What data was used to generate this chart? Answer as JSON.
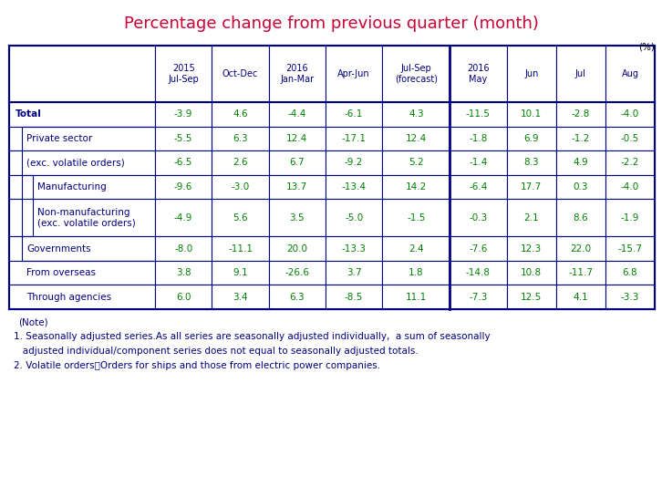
{
  "title": "Percentage change from previous quarter (month)",
  "title_color": "#CC0033",
  "unit_label": "(%)",
  "header_texts": [
    "2015\nJul-Sep",
    "Oct-Dec",
    "2016\nJan-Mar",
    "Apr-Jun",
    "Jul-Sep\n(forecast)",
    "2016\nMay",
    "Jun",
    "Jul",
    "Aug"
  ],
  "row_labels": [
    "Total",
    "Private sector",
    "(exc. volatile orders)",
    "Manufacturing",
    "Non-manufacturing\n(exc. volatile orders)",
    "Governments",
    "From overseas",
    "Through agencies"
  ],
  "row_indent": [
    0,
    1,
    1,
    2,
    2,
    1,
    1,
    1
  ],
  "row_label_bold": [
    true,
    false,
    false,
    false,
    false,
    false,
    false,
    false
  ],
  "data": [
    [
      "-3.9",
      "4.6",
      "-4.4",
      "-6.1",
      "4.3",
      "-11.5",
      "10.1",
      "-2.8",
      "-4.0"
    ],
    [
      "-5.5",
      "6.3",
      "12.4",
      "-17.1",
      "12.4",
      "-1.8",
      "6.9",
      "-1.2",
      "-0.5"
    ],
    [
      "-6.5",
      "2.6",
      "6.7",
      "-9.2",
      "5.2",
      "-1.4",
      "8.3",
      "4.9",
      "-2.2"
    ],
    [
      "-9.6",
      "-3.0",
      "13.7",
      "-13.4",
      "14.2",
      "-6.4",
      "17.7",
      "0.3",
      "-4.0"
    ],
    [
      "-4.9",
      "5.6",
      "3.5",
      "-5.0",
      "-1.5",
      "-0.3",
      "2.1",
      "8.6",
      "-1.9"
    ],
    [
      "-8.0",
      "-11.1",
      "20.0",
      "-13.3",
      "2.4",
      "-7.6",
      "12.3",
      "22.0",
      "-15.7"
    ],
    [
      "3.8",
      "9.1",
      "-26.6",
      "3.7",
      "1.8",
      "-14.8",
      "10.8",
      "-11.7",
      "6.8"
    ],
    [
      "6.0",
      "3.4",
      "6.3",
      "-8.5",
      "11.1",
      "-7.3",
      "12.5",
      "4.1",
      "-3.3"
    ]
  ],
  "note_line0": "(Note)",
  "note_line1": "1. Seasonally adjusted series.As all series are seasonally adjusted individually,  a sum of seasonally",
  "note_line2": "   adjusted individual/component series does not equal to seasonally adjusted totals.",
  "note_line3": "2. Volatile orders：Orders for ships and those from electric power companies.",
  "text_color_data": "#008000",
  "text_color_label": "#000080",
  "text_color_header": "#000080",
  "border_color": "#000080",
  "figwidth": 7.26,
  "figheight": 5.34,
  "dpi": 100
}
